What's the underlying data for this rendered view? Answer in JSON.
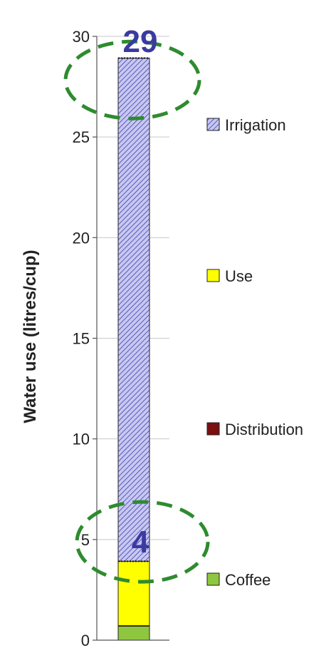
{
  "chart_data": {
    "type": "bar",
    "stacked": true,
    "ylabel": "Water use (litres/cup)",
    "ylim": [
      0,
      30
    ],
    "yticks": [
      0,
      5,
      10,
      15,
      20,
      25,
      30
    ],
    "grid": true,
    "legend_position": "right",
    "series": [
      {
        "name": "Coffee",
        "value": 0.7,
        "color": "#8fc63f"
      },
      {
        "name": "Distribution",
        "value": 0.02,
        "color": "#7b1010"
      },
      {
        "name": "Use",
        "value": 3.2,
        "color": "#ffff00"
      },
      {
        "name": "Irrigation",
        "value": 25.0,
        "color": "#9a9ae0"
      }
    ],
    "annotations": [
      {
        "text": "29",
        "value": 29
      },
      {
        "text": "4",
        "value": 4
      }
    ],
    "legend_order": [
      "Irrigation",
      "Use",
      "Distribution",
      "Coffee"
    ]
  }
}
